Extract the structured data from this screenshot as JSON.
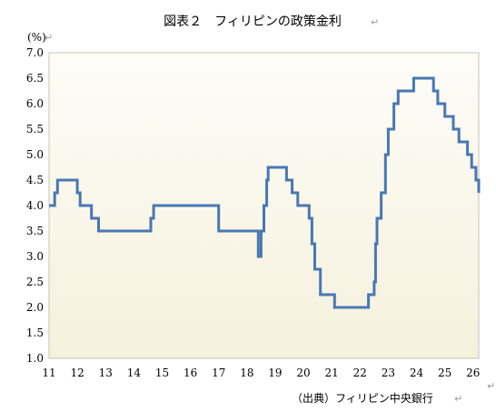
{
  "chart_data": {
    "type": "line",
    "title": "図表２　フィリピンの政策金利",
    "ylabel": "(%)",
    "xlabel": "",
    "source": "（出典）フィリピン中央銀行",
    "paragraph_mark": "↵",
    "ylim": [
      1.0,
      7.0
    ],
    "xlim": [
      11.0,
      26.2
    ],
    "yticks": [
      "1.0",
      "1.5",
      "2.0",
      "2.5",
      "3.0",
      "3.5",
      "4.0",
      "4.5",
      "5.0",
      "5.5",
      "6.0",
      "6.5",
      "7.0"
    ],
    "xticks": [
      "11",
      "12",
      "13",
      "14",
      "15",
      "16",
      "17",
      "18",
      "19",
      "20",
      "21",
      "22",
      "23",
      "24",
      "25",
      "26"
    ],
    "grid": false,
    "line_color": "#4878b4",
    "background": "#f6f1dd",
    "x": [
      11.0,
      11.2,
      11.3,
      12.0,
      12.1,
      12.5,
      12.75,
      14.6,
      14.7,
      16.3,
      17.0,
      18.4,
      18.5,
      18.6,
      18.7,
      18.75,
      19.4,
      19.6,
      19.8,
      20.2,
      20.3,
      20.4,
      20.6,
      21.1,
      22.3,
      22.5,
      22.55,
      22.6,
      22.75,
      22.9,
      23.0,
      23.2,
      23.35,
      23.6,
      23.9,
      24.6,
      24.75,
      25.0,
      25.1,
      25.3,
      25.5,
      25.8,
      25.95,
      26.1,
      26.2
    ],
    "y": [
      4.0,
      4.25,
      4.5,
      4.25,
      4.0,
      3.75,
      3.5,
      3.75,
      4.0,
      4.0,
      3.5,
      3.0,
      3.5,
      4.0,
      4.5,
      4.75,
      4.5,
      4.25,
      4.0,
      3.75,
      3.25,
      2.75,
      2.25,
      2.0,
      2.25,
      2.5,
      3.25,
      3.75,
      4.25,
      5.0,
      5.5,
      6.0,
      6.25,
      6.25,
      6.5,
      6.25,
      6.0,
      5.75,
      5.75,
      5.5,
      5.25,
      5.0,
      4.75,
      4.5,
      4.25
    ]
  }
}
